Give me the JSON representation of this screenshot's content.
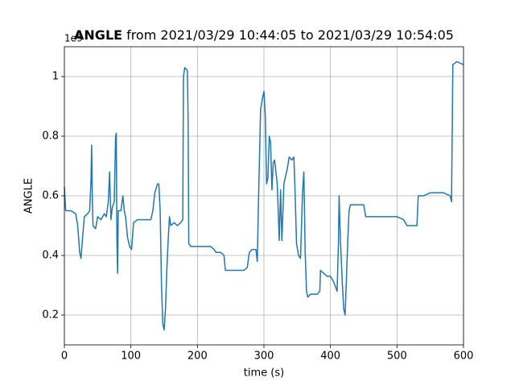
{
  "chart_data": {
    "type": "line",
    "title_bold": "ANGLE",
    "title": "from 2021/03/29 10:44:05 to 2021/03/29 10:54:05",
    "xlabel": "time (s)",
    "ylabel": "ANGLE",
    "y_offset_label": "1e9",
    "xlim": [
      0,
      600
    ],
    "xticks": [
      0,
      100,
      200,
      300,
      400,
      500,
      600
    ],
    "ylim": [
      0.1,
      1.1
    ],
    "yticks": [
      0.2,
      0.4,
      0.6,
      0.8,
      1.0
    ],
    "grid": true,
    "x": [
      0,
      2,
      10,
      17,
      20,
      23,
      25,
      27,
      30,
      35,
      38,
      40,
      41,
      42,
      43,
      47,
      50,
      55,
      60,
      63,
      66,
      68,
      70,
      72,
      75,
      77,
      78,
      79,
      80,
      81,
      85,
      88,
      90,
      92,
      95,
      98,
      101,
      104,
      110,
      120,
      130,
      133,
      136,
      140,
      142,
      144,
      146,
      148,
      150,
      152,
      154,
      156,
      158,
      160,
      165,
      170,
      175,
      178,
      179,
      181,
      185,
      186,
      187,
      190,
      200,
      210,
      220,
      225,
      228,
      235,
      240,
      242,
      250,
      260,
      270,
      275,
      278,
      282,
      288,
      290,
      292,
      295,
      298,
      300,
      302,
      304,
      306,
      308,
      310,
      312,
      314,
      316,
      320,
      323,
      325,
      327,
      330,
      335,
      338,
      342,
      345,
      347,
      349,
      352,
      355,
      358,
      360,
      362,
      364,
      366,
      370,
      380,
      384,
      385,
      390,
      395,
      400,
      405,
      410,
      412,
      413,
      415,
      418,
      420,
      422,
      424,
      426,
      428,
      430,
      440,
      450,
      453,
      460,
      470,
      480,
      490,
      500,
      510,
      515,
      530,
      532,
      540,
      550,
      560,
      570,
      580,
      582,
      584,
      590,
      600
    ],
    "series": [
      {
        "name": "ANGLE",
        "color": "#1f77b4",
        "values": [
          0.63,
          0.55,
          0.55,
          0.54,
          0.5,
          0.41,
          0.39,
          0.45,
          0.53,
          0.54,
          0.55,
          0.65,
          0.77,
          0.6,
          0.5,
          0.49,
          0.53,
          0.52,
          0.54,
          0.53,
          0.58,
          0.68,
          0.52,
          0.56,
          0.58,
          0.8,
          0.81,
          0.45,
          0.34,
          0.55,
          0.55,
          0.6,
          0.55,
          0.53,
          0.46,
          0.43,
          0.42,
          0.51,
          0.52,
          0.52,
          0.52,
          0.55,
          0.61,
          0.64,
          0.64,
          0.55,
          0.3,
          0.17,
          0.15,
          0.22,
          0.35,
          0.45,
          0.53,
          0.5,
          0.51,
          0.5,
          0.51,
          0.52,
          1.0,
          1.03,
          1.02,
          0.85,
          0.44,
          0.43,
          0.43,
          0.43,
          0.43,
          0.42,
          0.41,
          0.41,
          0.4,
          0.35,
          0.35,
          0.35,
          0.35,
          0.36,
          0.41,
          0.42,
          0.42,
          0.38,
          0.6,
          0.89,
          0.93,
          0.95,
          0.87,
          0.64,
          0.66,
          0.8,
          0.78,
          0.62,
          0.71,
          0.72,
          0.64,
          0.45,
          0.62,
          0.45,
          0.64,
          0.69,
          0.73,
          0.72,
          0.73,
          0.6,
          0.44,
          0.4,
          0.39,
          0.61,
          0.68,
          0.41,
          0.28,
          0.26,
          0.27,
          0.27,
          0.28,
          0.35,
          0.34,
          0.33,
          0.33,
          0.31,
          0.28,
          0.44,
          0.6,
          0.45,
          0.3,
          0.22,
          0.2,
          0.32,
          0.45,
          0.55,
          0.57,
          0.57,
          0.57,
          0.53,
          0.53,
          0.53,
          0.53,
          0.53,
          0.53,
          0.52,
          0.5,
          0.5,
          0.6,
          0.6,
          0.61,
          0.61,
          0.61,
          0.6,
          0.58,
          1.04,
          1.05,
          1.04
        ]
      }
    ]
  }
}
